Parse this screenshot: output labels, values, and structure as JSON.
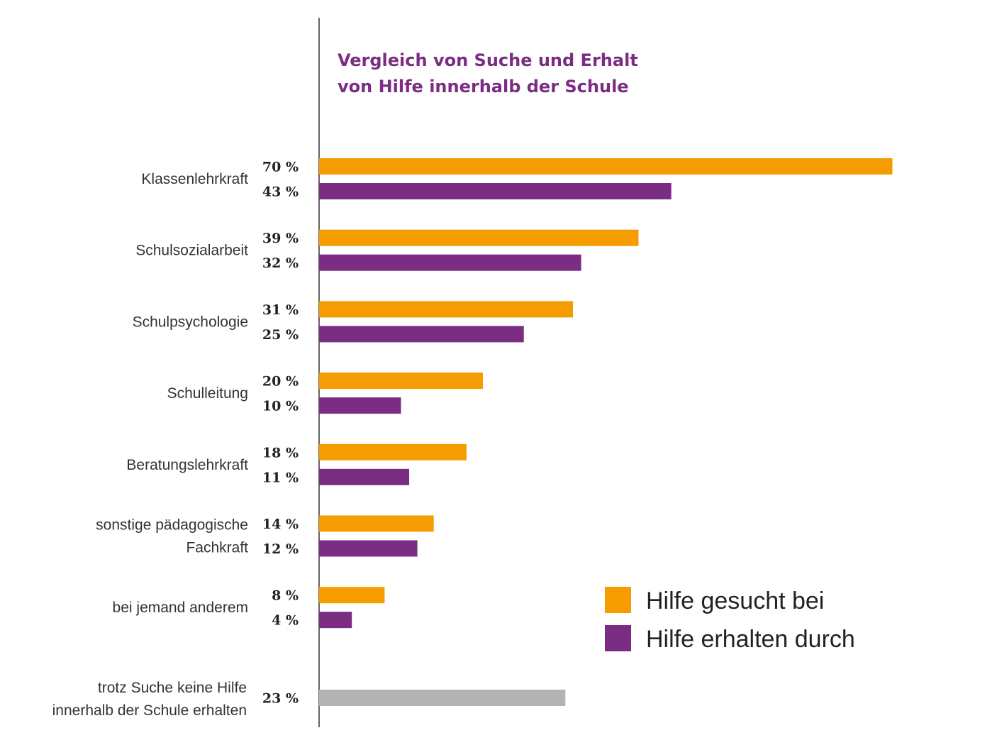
{
  "chart_data": {
    "type": "bar",
    "orientation": "horizontal",
    "title": [
      "Vergleich von Suche und Erhalt",
      "von Hilfe innerhalb der Schule"
    ],
    "categories": [
      [
        "Klassenlehrkraft"
      ],
      [
        "Schulsozialarbeit"
      ],
      [
        "Schulpsychologie"
      ],
      [
        "Schulleitung"
      ],
      [
        "Beratungslehrkraft"
      ],
      [
        "sonstige pädagogische",
        "Fachkraft"
      ],
      [
        "bei jemand anderem"
      ]
    ],
    "series": [
      {
        "name": "Hilfe gesucht bei",
        "color": "#f59c00",
        "values": [
          70,
          39,
          31,
          20,
          18,
          14,
          8
        ]
      },
      {
        "name": "Hilfe erhalten durch",
        "color": "#7b2d83",
        "values": [
          43,
          32,
          25,
          10,
          11,
          12,
          4
        ]
      }
    ],
    "extra": {
      "label": [
        "trotz Suche keine Hilfe",
        "innerhalb der Schule erhalten"
      ],
      "value": 23,
      "color": "#b3b3b3"
    },
    "value_suffix": "%",
    "xlim": [
      0,
      70
    ],
    "legend_position": "bottom-right",
    "grid": false
  }
}
